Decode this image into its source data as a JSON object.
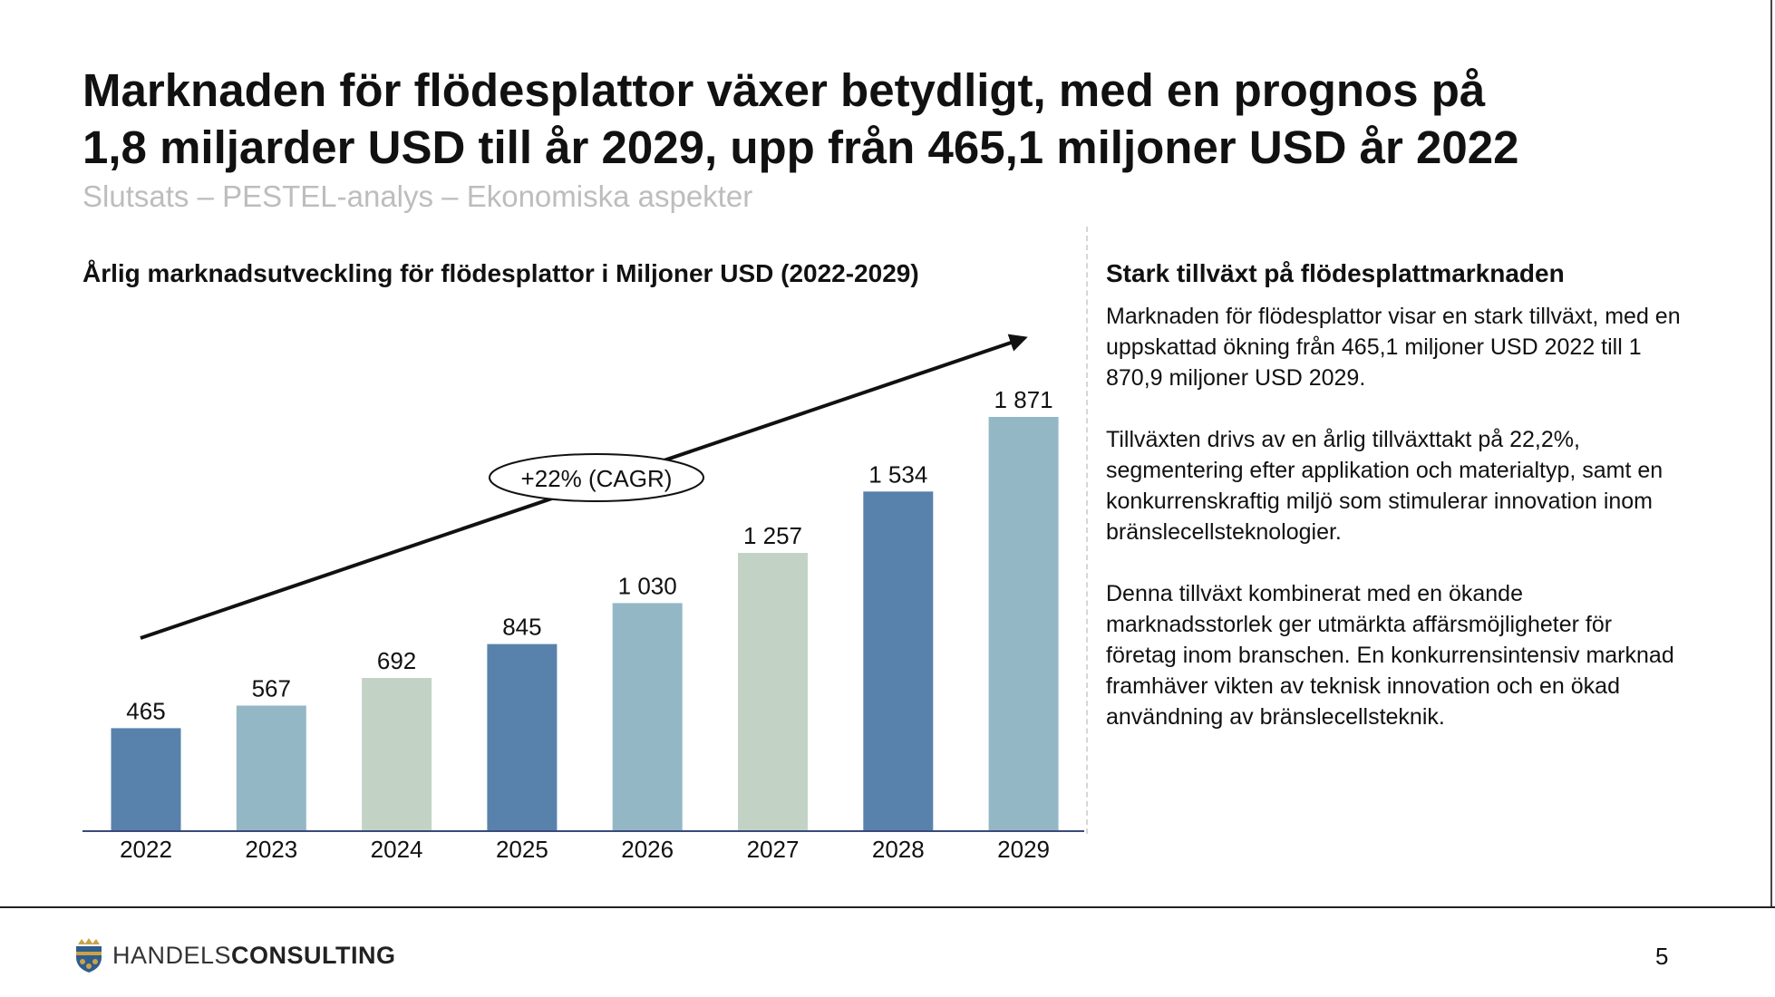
{
  "slide": {
    "title_line1": "Marknaden för flödesplattor växer betydligt, med en prognos på",
    "title_line2": "1,8 miljarder USD till år 2029, upp från 465,1 miljoner USD år 2022",
    "subtitle": "Slutsats – PESTEL-analys – Ekonomiska aspekter",
    "page_number": "5"
  },
  "chart_data": {
    "type": "bar",
    "title": "Årlig marknadsutveckling för flödesplattor i Miljoner USD (2022-2029)",
    "categories": [
      "2022",
      "2023",
      "2024",
      "2025",
      "2026",
      "2027",
      "2028",
      "2029"
    ],
    "values": [
      465,
      567,
      692,
      845,
      1030,
      1257,
      1534,
      1871
    ],
    "value_labels": [
      "465",
      "567",
      "692",
      "845",
      "1 030",
      "1 257",
      "1 534",
      "1 871"
    ],
    "bar_colors": [
      "#5882ab",
      "#94b7c6",
      "#c2d3c6",
      "#5882ab",
      "#94b7c6",
      "#c2d3c6",
      "#5882ab",
      "#94b7c6"
    ],
    "ylim": [
      0,
      1871
    ],
    "annotation": "+22% (CAGR)",
    "grid": false,
    "axis_color": "#3a4a7a"
  },
  "side_panel": {
    "heading": "Stark tillväxt på flödesplattmarknaden",
    "paragraph1": "Marknaden för flödesplattor visar en stark tillväxt, med en uppskattad ökning från 465,1 miljoner USD 2022 till 1 870,9 miljoner USD 2029.",
    "paragraph2": "Tillväxten drivs av en årlig tillväxttakt på 22,2%, segmentering efter applikation och materialtyp, samt en konkurrenskraftig miljö som stimulerar innovation inom bränslecellsteknologier.",
    "paragraph3": "Denna tillväxt kombinerat med en ökande marknadsstorlek ger utmärkta affärsmöjligheter för företag inom branschen. En konkurrensintensiv marknad framhäver vikten av teknisk innovation och en ökad användning av bränslecellsteknik."
  },
  "footer": {
    "logo_part1": "HANDELS",
    "logo_part2": "CONSULTING",
    "logo_icon": "crown-shield-icon"
  }
}
